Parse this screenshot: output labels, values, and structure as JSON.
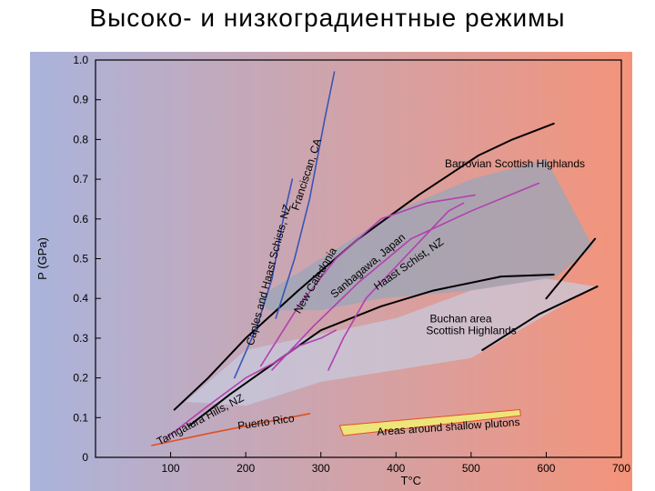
{
  "page": {
    "title": "Высоко- и низкоградиентные режимы"
  },
  "colors": {
    "bg_left": "#aab4dc",
    "bg_right": "#f4937a",
    "field_fill": "#9aa6b8",
    "field_light": "#c8ccdf",
    "magenta": "#b33fb0",
    "blue": "#3a55b8",
    "orange_red": "#e24e22",
    "pluton_fill": "#eee47a"
  },
  "chart_data": {
    "type": "line",
    "xlabel": "T°C",
    "ylabel": "P (GPa)",
    "xlim": [
      0,
      700
    ],
    "ylim": [
      0,
      1.0
    ],
    "x_ticks": [
      100,
      200,
      300,
      400,
      500,
      600,
      700
    ],
    "y_ticks": [
      0,
      0.1,
      0.2,
      0.3,
      0.4,
      0.5,
      0.6,
      0.7,
      0.8,
      0.9,
      1.0
    ],
    "x_tick_labels": [
      "100",
      "200",
      "300",
      "400",
      "500",
      "600",
      "700"
    ],
    "y_tick_labels": [
      "0",
      "0.1",
      "0.2",
      "0.3",
      "0.4",
      "0.5",
      "0.6",
      "0.7",
      "0.8",
      "0.9",
      "1.0"
    ],
    "areas": [
      {
        "label": "Barrovian Scottish Highlands",
        "points": [
          [
            215,
            0.4
          ],
          [
            300,
            0.5
          ],
          [
            400,
            0.62
          ],
          [
            500,
            0.7
          ],
          [
            600,
            0.75
          ],
          [
            662,
            0.53
          ],
          [
            610,
            0.45
          ],
          [
            500,
            0.42
          ],
          [
            380,
            0.4
          ],
          [
            300,
            0.37
          ],
          [
            230,
            0.37
          ]
        ]
      },
      {
        "label": "Buchan area Scottish Highlands",
        "points": [
          [
            120,
            0.14
          ],
          [
            200,
            0.27
          ],
          [
            300,
            0.31
          ],
          [
            400,
            0.35
          ],
          [
            500,
            0.42
          ],
          [
            600,
            0.45
          ],
          [
            665,
            0.43
          ],
          [
            500,
            0.25
          ],
          [
            400,
            0.22
          ],
          [
            300,
            0.19
          ],
          [
            200,
            0.13
          ]
        ]
      },
      {
        "label": "Areas around shallow plutons",
        "points": [
          [
            325,
            0.08
          ],
          [
            565,
            0.12
          ],
          [
            566,
            0.105
          ],
          [
            330,
            0.055
          ]
        ]
      }
    ],
    "series": [
      {
        "name": "Barrovian upper boundary",
        "color": "#000000",
        "points": [
          [
            105,
            0.12
          ],
          [
            150,
            0.2
          ],
          [
            200,
            0.3
          ],
          [
            270,
            0.42
          ],
          [
            350,
            0.55
          ],
          [
            430,
            0.66
          ],
          [
            510,
            0.76
          ],
          [
            555,
            0.8
          ],
          [
            610,
            0.84
          ]
        ]
      },
      {
        "name": "Barrovian lower boundary",
        "color": "#000000",
        "points": [
          [
            125,
            0.08
          ],
          [
            180,
            0.16
          ],
          [
            240,
            0.24
          ],
          [
            300,
            0.32
          ],
          [
            380,
            0.38
          ],
          [
            450,
            0.42
          ],
          [
            540,
            0.455
          ],
          [
            610,
            0.46
          ]
        ]
      },
      {
        "name": "Buchan lower boundary",
        "color": "#000000",
        "points": [
          [
            515,
            0.27
          ],
          [
            590,
            0.36
          ],
          [
            668,
            0.43
          ]
        ]
      },
      {
        "name": "Barrovian right boundary",
        "color": "#000000",
        "points": [
          [
            600,
            0.4
          ],
          [
            665,
            0.55
          ]
        ]
      },
      {
        "name": "Caples and Haast Schists, NZ",
        "color": "#3a55b8",
        "points": [
          [
            185,
            0.2
          ],
          [
            215,
            0.33
          ],
          [
            235,
            0.45
          ],
          [
            250,
            0.6
          ],
          [
            262,
            0.7
          ]
        ]
      },
      {
        "name": "Franciscan, CA",
        "color": "#3a55b8",
        "points": [
          [
            240,
            0.35
          ],
          [
            265,
            0.5
          ],
          [
            285,
            0.65
          ],
          [
            305,
            0.85
          ],
          [
            318,
            0.97
          ]
        ]
      },
      {
        "name": "Sanbagawa, Japan",
        "color": "#b33fb0",
        "points": [
          [
            220,
            0.23
          ],
          [
            270,
            0.38
          ],
          [
            320,
            0.5
          ],
          [
            380,
            0.6
          ],
          [
            440,
            0.64
          ],
          [
            505,
            0.66
          ]
        ]
      },
      {
        "name": "Haast Schist, NZ",
        "color": "#b33fb0",
        "points": [
          [
            235,
            0.22
          ],
          [
            290,
            0.33
          ],
          [
            350,
            0.44
          ],
          [
            420,
            0.55
          ],
          [
            500,
            0.62
          ],
          [
            590,
            0.69
          ]
        ]
      },
      {
        "name": "New Caledonia",
        "color": "#b33fb0",
        "points": [
          [
            310,
            0.22
          ],
          [
            330,
            0.3
          ],
          [
            360,
            0.4
          ],
          [
            410,
            0.5
          ],
          [
            470,
            0.62
          ],
          [
            490,
            0.64
          ]
        ]
      },
      {
        "name": "Tarngatura Hills, NZ",
        "color": "#b33fb0",
        "points": [
          [
            95,
            0.05
          ],
          [
            150,
            0.13
          ],
          [
            200,
            0.2
          ],
          [
            240,
            0.24
          ],
          [
            270,
            0.28
          ],
          [
            300,
            0.3
          ],
          [
            320,
            0.32
          ]
        ]
      },
      {
        "name": "Puerto Rico",
        "color": "#e24e22",
        "points": [
          [
            75,
            0.03
          ],
          [
            150,
            0.06
          ],
          [
            230,
            0.09
          ],
          [
            285,
            0.11
          ]
        ]
      }
    ],
    "annotations": [
      {
        "text": "Barrovian Scottish Highlands",
        "x": 465,
        "y": 0.73
      },
      {
        "text": "Buchan area",
        "x": 445,
        "y": 0.34
      },
      {
        "text": "Scottish Highlands",
        "x": 440,
        "y": 0.31
      },
      {
        "text": "Caples and Haast Schists, NZ",
        "x": 210,
        "y": 0.28
      },
      {
        "text": "Franciscan, CA",
        "x": 270,
        "y": 0.62
      },
      {
        "text": "New Caledonia",
        "x": 272,
        "y": 0.36
      },
      {
        "text": "Sanbagawa, Japan",
        "x": 318,
        "y": 0.4
      },
      {
        "text": "Haast Schist, NZ",
        "x": 375,
        "y": 0.42
      },
      {
        "text": "Tarngatura Hills, NZ",
        "x": 85,
        "y": 0.03
      },
      {
        "text": "Puerto Rico",
        "x": 190,
        "y": 0.07
      },
      {
        "text": "Areas around shallow plutons",
        "x": 375,
        "y": 0.055
      }
    ],
    "grid": false
  }
}
